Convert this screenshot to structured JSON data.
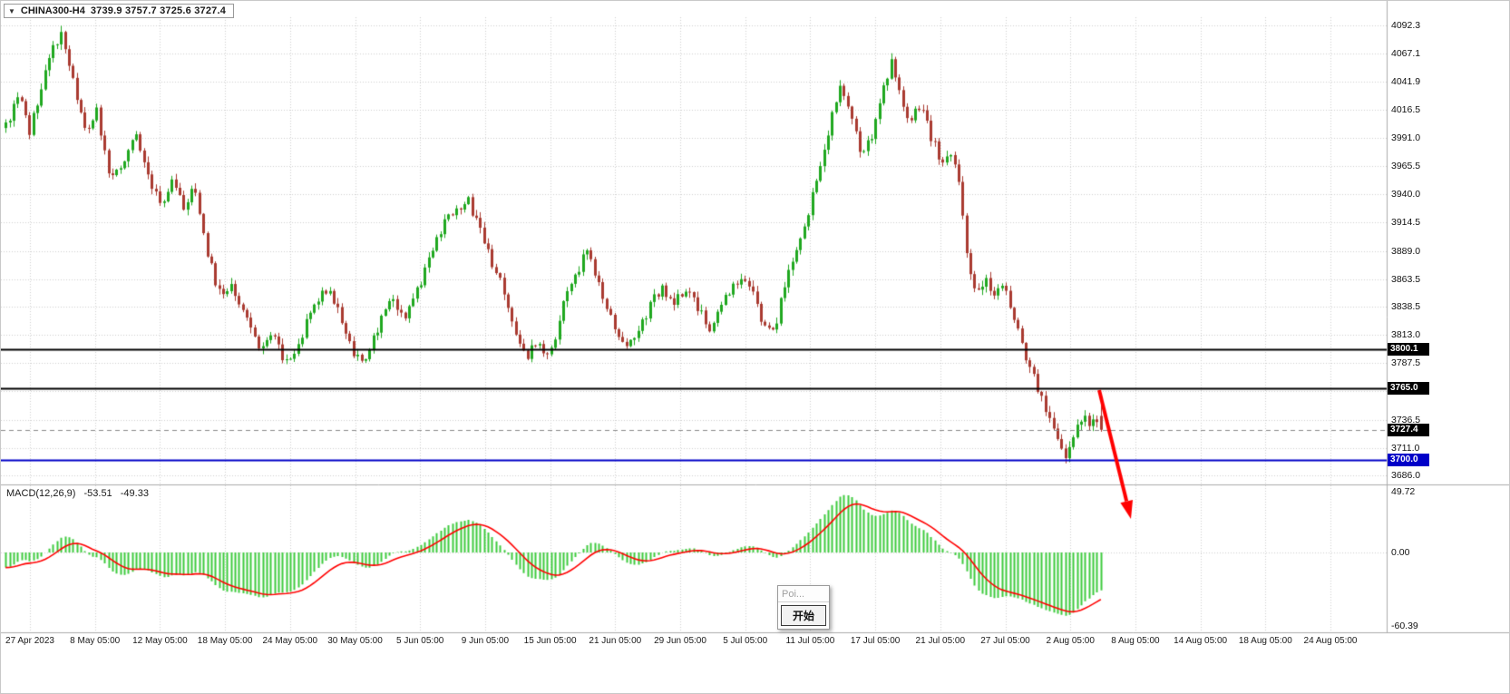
{
  "window": {
    "background": "#FFFFFF",
    "border_color": "#C8C8C8"
  },
  "title_bar": {
    "dropdown_icon": "▼",
    "symbol": "CHINA300-H4",
    "open": "3739.9",
    "high": "3757.7",
    "low": "3725.6",
    "close": "3727.4"
  },
  "price_axis": {
    "labels": [
      "4092.3",
      "4067.1",
      "4041.9",
      "4016.5",
      "3991.0",
      "3965.5",
      "3940.0",
      "3914.5",
      "3889.0",
      "3863.5",
      "3838.5",
      "3813.0",
      "3787.5",
      "3762.0",
      "3736.5",
      "3711.0",
      "3686.0"
    ]
  },
  "price_tags": [
    {
      "value": "3800.1",
      "price": 3800.1,
      "bg": "#000000",
      "fg": "#FFFFFF",
      "line_color": "#000000",
      "line_width": 2,
      "line_style": "solid"
    },
    {
      "value": "3765.0",
      "price": 3765.0,
      "bg": "#000000",
      "fg": "#FFFFFF",
      "line_color": "#000000",
      "line_width": 2,
      "line_style": "solid"
    },
    {
      "value": "3727.4",
      "price": 3727.4,
      "bg": "#000000",
      "fg": "#FFFFFF",
      "line_color": "#8a8a8a",
      "line_width": 1,
      "line_style": "dashed"
    },
    {
      "value": "3700.0",
      "price": 3700.0,
      "bg": "#0000C8",
      "fg": "#FFFFFF",
      "line_color": "#0000C8",
      "line_width": 2,
      "line_style": "solid"
    }
  ],
  "time_axis": {
    "labels": [
      "27 Apr 2023",
      "8 May 05:00",
      "12 May 05:00",
      "18 May 05:00",
      "24 May 05:00",
      "30 May 05:00",
      "5 Jun 05:00",
      "9 Jun 05:00",
      "15 Jun 05:00",
      "21 Jun 05:00",
      "29 Jun 05:00",
      "5 Jul 05:00",
      "11 Jul 05:00",
      "17 Jul 05:00",
      "21 Jul 05:00",
      "27 Jul 05:00",
      "2 Aug 05:00",
      "8 Aug 05:00",
      "14 Aug 05:00",
      "18 Aug 05:00",
      "24 Aug 05:00"
    ]
  },
  "macd_panel": {
    "name": "MACD(12,26,9)",
    "macd_value": "-53.51",
    "signal_value": "-49.33",
    "axis_labels": [
      "49.72",
      "0.00",
      "-60.39"
    ]
  },
  "popup": {
    "title": "Poi...",
    "button_label": "开始"
  },
  "annotations": {
    "arrow": {
      "color": "#FF0000",
      "description": "red arrow drawn from below 3765 level pointing down-right, projecting further decline"
    }
  },
  "chart_data": {
    "type": "candlestick",
    "symbol": "CHINA300-H4",
    "timeframe": "H4",
    "title": "CHINA300-H4 3739.9 3757.7 3725.6 3727.4",
    "last_candle_ohlc": {
      "open": 3739.9,
      "high": 3757.7,
      "low": 3725.6,
      "close": 3727.4
    },
    "visible_high": 4092.3,
    "visible_low": 3697.0,
    "y_axis_range": [
      3678.0,
      4100.0
    ],
    "x_axis_range": [
      "27 Apr 2023",
      "24 Aug 2023 05:00"
    ],
    "up_color": "#1FA81F",
    "down_color": "#A93A30",
    "approx_bar_count": 278,
    "horizontal_levels": [
      3800.1,
      3765.0,
      3700.0
    ],
    "current_price": 3727.4,
    "price_path": [
      [
        0.0,
        4000
      ],
      [
        0.012,
        4028
      ],
      [
        0.022,
        3996
      ],
      [
        0.034,
        4042
      ],
      [
        0.046,
        4078
      ],
      [
        0.052,
        4086
      ],
      [
        0.062,
        4038
      ],
      [
        0.073,
        3996
      ],
      [
        0.083,
        4014
      ],
      [
        0.095,
        3954
      ],
      [
        0.106,
        3970
      ],
      [
        0.118,
        3994
      ],
      [
        0.13,
        3958
      ],
      [
        0.142,
        3930
      ],
      [
        0.152,
        3956
      ],
      [
        0.163,
        3928
      ],
      [
        0.173,
        3946
      ],
      [
        0.186,
        3878
      ],
      [
        0.197,
        3846
      ],
      [
        0.207,
        3858
      ],
      [
        0.218,
        3832
      ],
      [
        0.232,
        3800
      ],
      [
        0.243,
        3818
      ],
      [
        0.254,
        3788
      ],
      [
        0.268,
        3806
      ],
      [
        0.282,
        3842
      ],
      [
        0.293,
        3856
      ],
      [
        0.303,
        3838
      ],
      [
        0.316,
        3800
      ],
      [
        0.328,
        3788
      ],
      [
        0.342,
        3824
      ],
      [
        0.353,
        3846
      ],
      [
        0.363,
        3830
      ],
      [
        0.375,
        3852
      ],
      [
        0.388,
        3886
      ],
      [
        0.4,
        3912
      ],
      [
        0.412,
        3928
      ],
      [
        0.422,
        3934
      ],
      [
        0.433,
        3906
      ],
      [
        0.444,
        3876
      ],
      [
        0.454,
        3854
      ],
      [
        0.465,
        3812
      ],
      [
        0.476,
        3795
      ],
      [
        0.486,
        3806
      ],
      [
        0.496,
        3790
      ],
      [
        0.508,
        3836
      ],
      [
        0.52,
        3866
      ],
      [
        0.531,
        3890
      ],
      [
        0.543,
        3856
      ],
      [
        0.554,
        3826
      ],
      [
        0.565,
        3800
      ],
      [
        0.576,
        3816
      ],
      [
        0.587,
        3836
      ],
      [
        0.598,
        3856
      ],
      [
        0.609,
        3840
      ],
      [
        0.62,
        3856
      ],
      [
        0.631,
        3840
      ],
      [
        0.642,
        3820
      ],
      [
        0.652,
        3840
      ],
      [
        0.663,
        3856
      ],
      [
        0.673,
        3866
      ],
      [
        0.683,
        3846
      ],
      [
        0.693,
        3820
      ],
      [
        0.702,
        3816
      ],
      [
        0.712,
        3862
      ],
      [
        0.722,
        3892
      ],
      [
        0.732,
        3922
      ],
      [
        0.742,
        3962
      ],
      [
        0.752,
        4002
      ],
      [
        0.762,
        4038
      ],
      [
        0.772,
        4012
      ],
      [
        0.781,
        3978
      ],
      [
        0.79,
        3992
      ],
      [
        0.8,
        4028
      ],
      [
        0.808,
        4062
      ],
      [
        0.817,
        4030
      ],
      [
        0.826,
        4006
      ],
      [
        0.835,
        4022
      ],
      [
        0.845,
        3992
      ],
      [
        0.855,
        3966
      ],
      [
        0.864,
        3976
      ],
      [
        0.872,
        3942
      ],
      [
        0.879,
        3872
      ],
      [
        0.887,
        3852
      ],
      [
        0.895,
        3862
      ],
      [
        0.903,
        3846
      ],
      [
        0.91,
        3856
      ],
      [
        0.918,
        3840
      ],
      [
        0.926,
        3812
      ],
      [
        0.934,
        3786
      ],
      [
        0.942,
        3766
      ],
      [
        0.95,
        3746
      ],
      [
        0.957,
        3731
      ],
      [
        0.963,
        3714
      ],
      [
        0.968,
        3700
      ],
      [
        0.974,
        3722
      ],
      [
        0.981,
        3739
      ],
      [
        1.0,
        3727.4
      ]
    ],
    "indicator": {
      "type": "MACD",
      "params": [
        12,
        26,
        9
      ],
      "macd": -53.51,
      "signal": -49.33,
      "scale_max": 49.72,
      "scale_min": -60.39,
      "zero_line": 0.0,
      "histogram_color": "#3ECC3E",
      "signal_color": "#FF0000"
    }
  }
}
